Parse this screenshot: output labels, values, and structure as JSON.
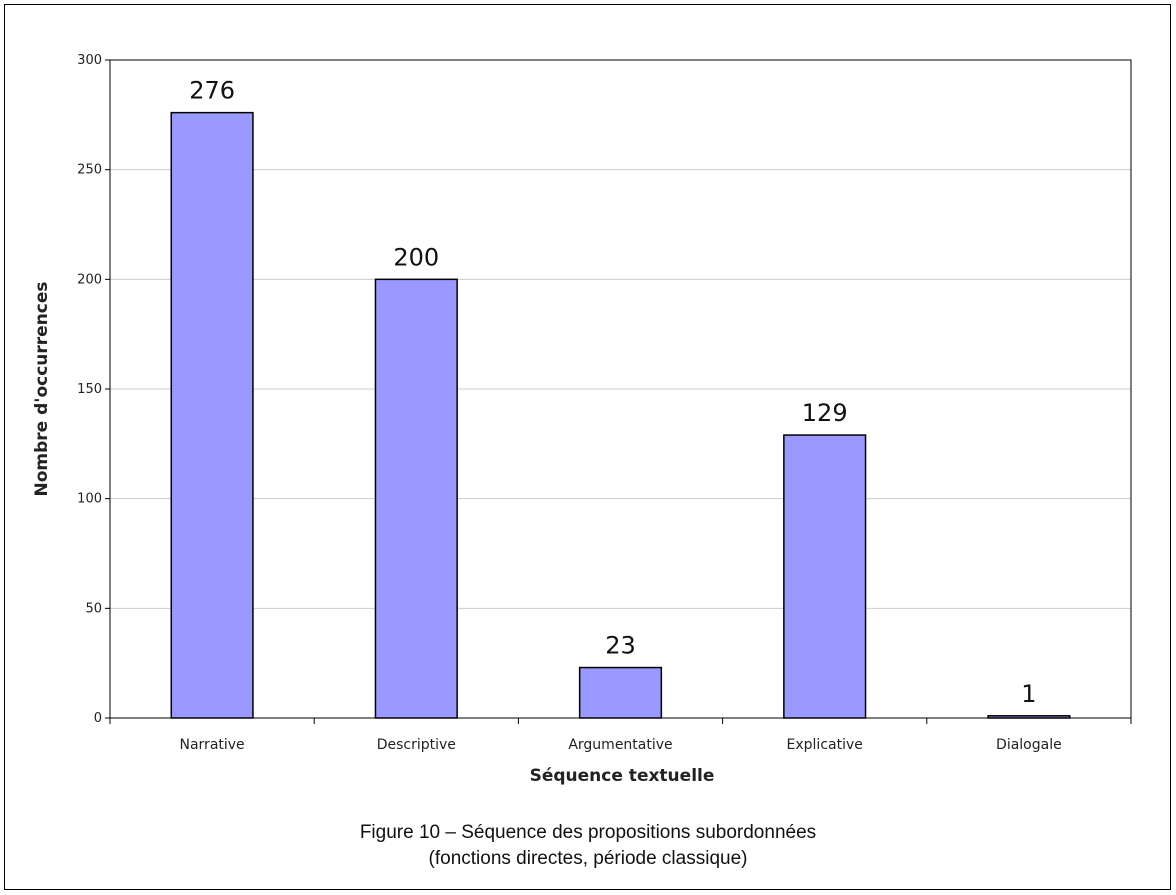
{
  "chart_data": {
    "type": "bar",
    "categories": [
      "Narrative",
      "Descriptive",
      "Argumentative",
      "Explicative",
      "Dialogale"
    ],
    "values": [
      276,
      200,
      23,
      129,
      1
    ],
    "data_labels": [
      "276",
      "200",
      "23",
      "129",
      "1"
    ],
    "xlabel": "Séquence textuelle",
    "ylabel": "Nombre d'occurrences",
    "ylim": [
      0,
      300
    ],
    "yticks": [
      0,
      50,
      100,
      150,
      200,
      250,
      300
    ],
    "grid": "horizontal",
    "bar_color": "#9999ff",
    "bar_edge_color": "#000000",
    "grid_color": "#cccccc"
  },
  "caption": {
    "line1": "Figure 10 – Séquence des propositions subordonnées",
    "line2": "(fonctions directes, période classique)"
  }
}
